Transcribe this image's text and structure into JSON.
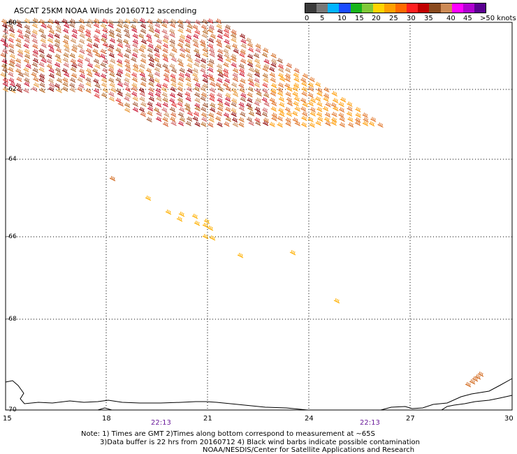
{
  "title": "ASCAT 25KM NOAA Winds 20160712 ascending",
  "legend": {
    "colors": [
      "#3a3a3a",
      "#777777",
      "#00b4ff",
      "#1b4cff",
      "#16b41a",
      "#80c838",
      "#ffd400",
      "#ffa000",
      "#ff6a00",
      "#ff2020",
      "#c00000",
      "#8a4a1e",
      "#cc8a55",
      "#ff00ff",
      "#b000d0",
      "#5a0090"
    ],
    "labels": [
      "0",
      "5",
      "10",
      "15",
      "20",
      "25",
      "30",
      "35",
      "40",
      "45",
      ">50 knots"
    ]
  },
  "lat_labels": [
    "-60",
    "-62",
    "-64",
    "-66",
    "-68",
    "-70"
  ],
  "lon_labels": [
    "15",
    "18",
    "21",
    "24",
    "27",
    "30"
  ],
  "time_labels": [
    "22:13",
    "22:13"
  ],
  "notes": {
    "line1": "Note: 1) Times are GMT 2)Times along bottom correspond to measurement at ~65S",
    "line2": "3)Data buffer is 22 hrs from 20160712 4) Black wind barbs indicate possible contamination",
    "line3": "NOAA/NESDIS/Center for Satellite Applications and Research"
  }
}
